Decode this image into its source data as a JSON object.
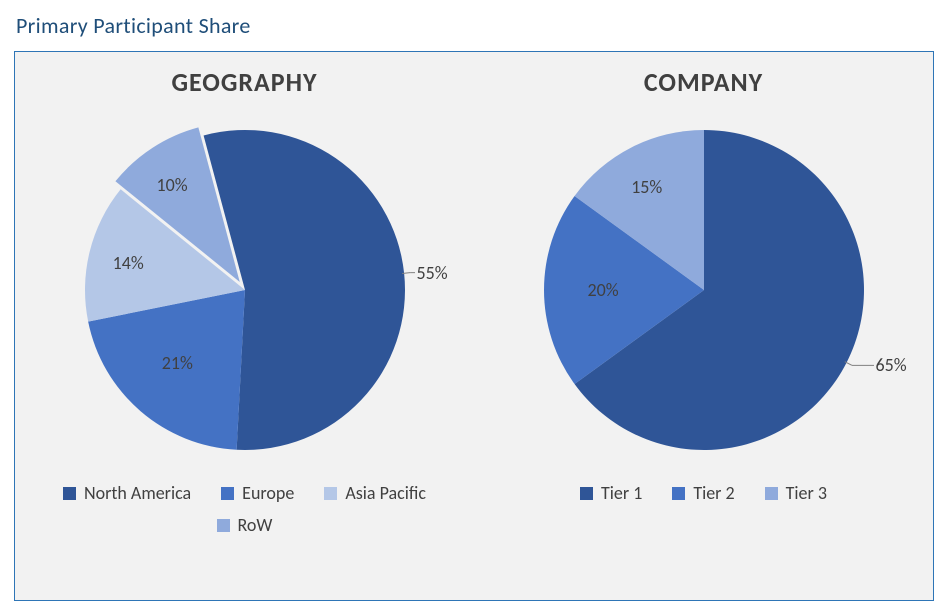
{
  "title": "Primary Participant Share",
  "card_border_color": "#2e75b6",
  "card_background": "#f2f2f2",
  "panel_title_color": "#404040",
  "label_color": "#404040",
  "charts": {
    "geography": {
      "title": "GEOGRAPHY",
      "type": "pie",
      "start_angle_deg": -15,
      "slices": [
        {
          "label": "North America",
          "value": 55,
          "color": "#2f5597",
          "leader": true
        },
        {
          "label": "Europe",
          "value": 21,
          "color": "#4472c4"
        },
        {
          "label": "Asia Pacific",
          "value": 14,
          "color": "#b4c7e7"
        },
        {
          "label": "RoW",
          "value": 10,
          "color": "#8faadc",
          "explode": 0.06
        }
      ]
    },
    "company": {
      "title": "COMPANY",
      "type": "pie",
      "start_angle_deg": 0,
      "slices": [
        {
          "label": "Tier 1",
          "value": 65,
          "color": "#2f5597",
          "leader": true
        },
        {
          "label": "Tier 2",
          "value": 20,
          "color": "#4472c4"
        },
        {
          "label": "Tier 3",
          "value": 15,
          "color": "#8faadc"
        }
      ]
    }
  }
}
